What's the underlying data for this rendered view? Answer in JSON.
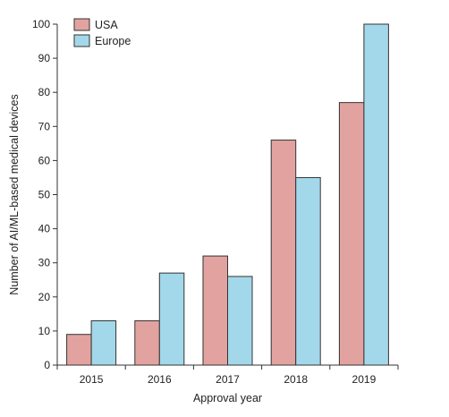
{
  "chart_data": {
    "type": "bar",
    "categories": [
      "2015",
      "2016",
      "2017",
      "2018",
      "2019"
    ],
    "series": [
      {
        "name": "USA",
        "values": [
          9,
          13,
          32,
          66,
          77
        ],
        "color": "#e2a3a0"
      },
      {
        "name": "Europe",
        "values": [
          13,
          27,
          26,
          55,
          100
        ],
        "color": "#a3d8ea"
      }
    ],
    "title": "",
    "xlabel": "Approval year",
    "ylabel": "Number of AI/ML-based medical devices",
    "ylim": [
      0,
      100
    ],
    "yticks": [
      0,
      10,
      20,
      30,
      40,
      50,
      60,
      70,
      80,
      90,
      100
    ],
    "grid": false,
    "legend_position": "top-left",
    "bar_edge_color": "#333333"
  }
}
